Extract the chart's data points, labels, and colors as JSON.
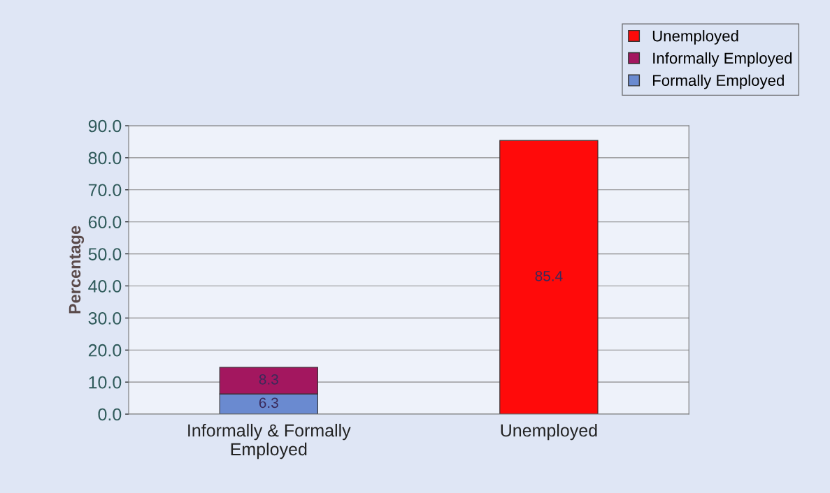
{
  "chart_data": {
    "type": "bar",
    "stacked": true,
    "ylabel": "Percentage",
    "categories": [
      "Informally & Formally\nEmployed",
      "Unemployed"
    ],
    "series": [
      {
        "name": "Formally Employed",
        "color": "#6a8ad0",
        "values": [
          6.3,
          null
        ]
      },
      {
        "name": "Informally Employed",
        "color": "#a3175f",
        "values": [
          8.3,
          null
        ]
      },
      {
        "name": "Unemployed",
        "color": "#ff0a0a",
        "values": [
          null,
          85.4
        ]
      }
    ],
    "ylim": [
      0,
      90
    ],
    "yticks": [
      {
        "value": 0,
        "label": "0.0"
      },
      {
        "value": 10,
        "label": "10.0"
      },
      {
        "value": 20,
        "label": "20.0"
      },
      {
        "value": 30,
        "label": "30.0"
      },
      {
        "value": 40,
        "label": "40.0"
      },
      {
        "value": 50,
        "label": "50.0"
      },
      {
        "value": 60,
        "label": "60.0"
      },
      {
        "value": 70,
        "label": "70.0"
      },
      {
        "value": 80,
        "label": "80.0"
      },
      {
        "value": 90,
        "label": "90.0"
      }
    ],
    "grid": "y",
    "legend": "top right",
    "data_labels": true
  }
}
